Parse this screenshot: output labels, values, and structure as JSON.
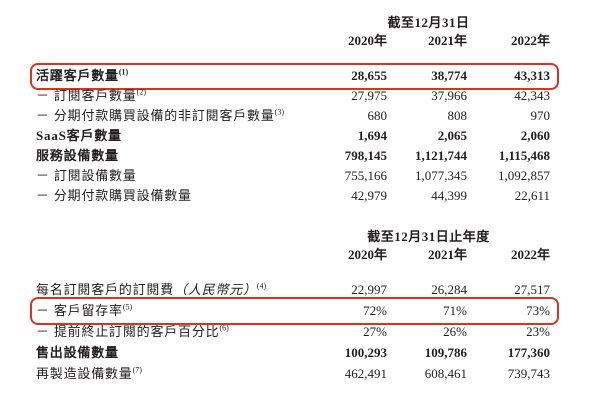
{
  "colors": {
    "background": "#ffffff",
    "text": "#231f20",
    "highlight_border": "#e0301e"
  },
  "table1": {
    "period_header": "截至12月31日",
    "col_headers": [
      "2020年",
      "2021年",
      "2022年"
    ],
    "rows": [
      {
        "label": "活躍客戶數量",
        "sup": "(1)",
        "values": [
          "28,655",
          "38,774",
          "43,313"
        ],
        "bold": true,
        "highlighted": true
      },
      {
        "label": "－ 訂閱客戶數量",
        "sup": "(2)",
        "values": [
          "27,975",
          "37,966",
          "42,343"
        ],
        "bold": false,
        "highlighted": false
      },
      {
        "label": "－ 分期付款購買設備的非訂閱客戶數量",
        "sup": "(3)",
        "values": [
          "680",
          "808",
          "970"
        ],
        "bold": false,
        "highlighted": false
      },
      {
        "label": "SaaS客戶數量",
        "sup": "",
        "values": [
          "1,694",
          "2,065",
          "2,060"
        ],
        "bold": true,
        "highlighted": false
      },
      {
        "label": "服務設備數量",
        "sup": "",
        "values": [
          "798,145",
          "1,121,744",
          "1,115,468"
        ],
        "bold": true,
        "highlighted": false
      },
      {
        "label": "－ 訂閱設備數量",
        "sup": "",
        "values": [
          "755,166",
          "1,077,345",
          "1,092,857"
        ],
        "bold": false,
        "highlighted": false
      },
      {
        "label": "－ 分期付款購買設備數量",
        "sup": "",
        "values": [
          "42,979",
          "44,399",
          "22,611"
        ],
        "bold": false,
        "highlighted": false
      }
    ]
  },
  "table2": {
    "period_header": "截至12月31日止年度",
    "col_headers": [
      "2020年",
      "2021年",
      "2022年"
    ],
    "rows": [
      {
        "label": "每名訂閱客戶的訂閱費",
        "paren": "（人民幣元）",
        "sup": "(4)",
        "values": [
          "22,997",
          "26,284",
          "27,517"
        ],
        "bold": false,
        "highlighted": false
      },
      {
        "label": "－ 客戶留存率",
        "sup": "(5)",
        "values": [
          "72%",
          "71%",
          "73%"
        ],
        "bold": false,
        "highlighted": true
      },
      {
        "label": "－ 提前終止訂閱的客戶百分比",
        "sup": "(6)",
        "values": [
          "27%",
          "26%",
          "23%"
        ],
        "bold": false,
        "highlighted": false
      },
      {
        "label": "售出設備數量",
        "sup": "",
        "values": [
          "100,293",
          "109,786",
          "177,360"
        ],
        "bold": true,
        "highlighted": false
      },
      {
        "label": "再製造設備數量",
        "sup": "(7)",
        "values": [
          "462,491",
          "608,461",
          "739,743"
        ],
        "bold": false,
        "highlighted": false
      }
    ]
  }
}
